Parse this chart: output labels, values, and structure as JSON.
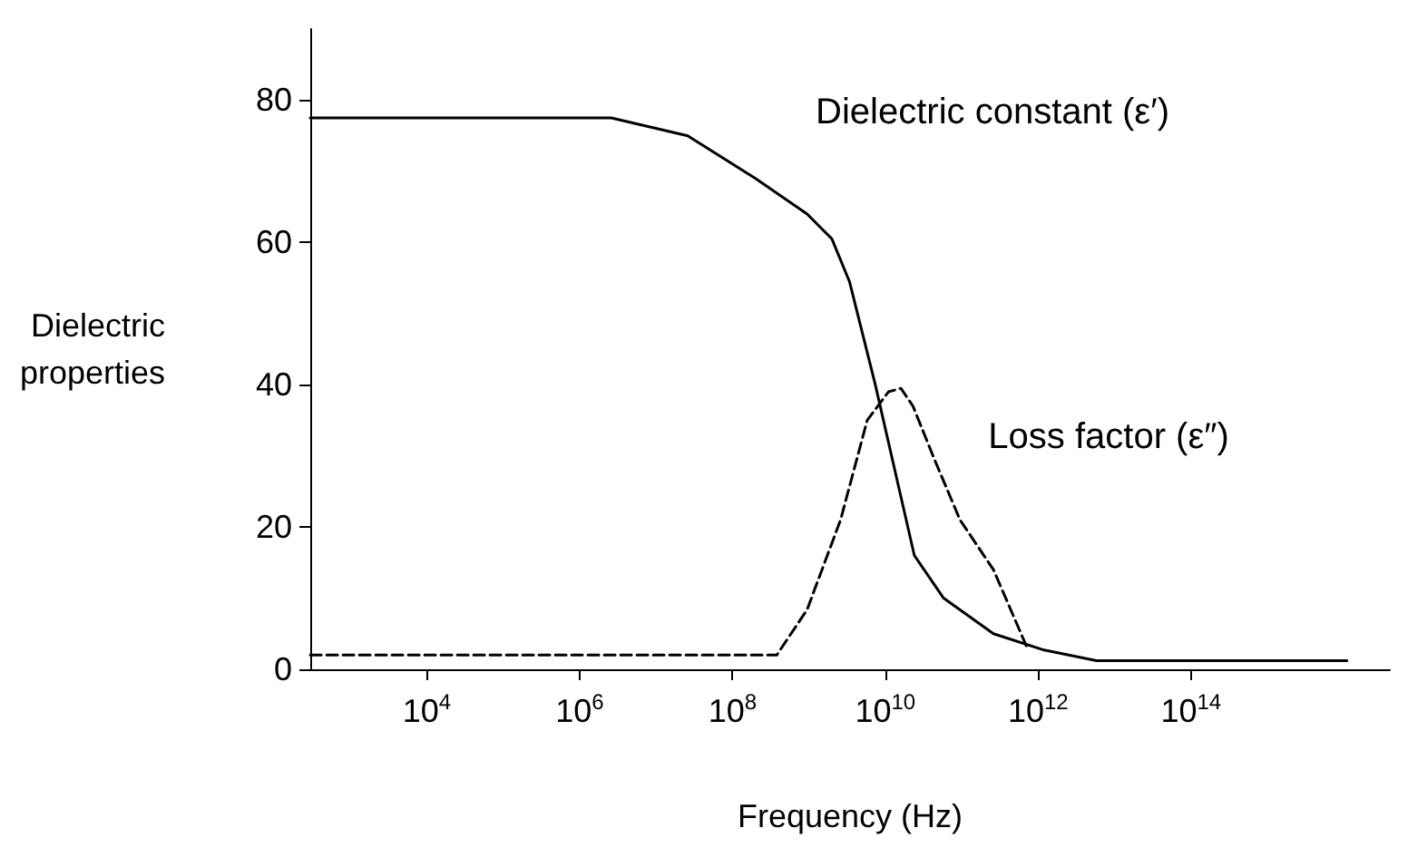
{
  "chart_data": {
    "type": "line",
    "xlabel": "Frequency (Hz)",
    "ylabel": "Dielectric properties",
    "log": "x",
    "xlim": [
      300,
      40000000000000000
    ],
    "ylim": [
      0,
      90
    ],
    "xticks": [
      {
        "value": 10000,
        "label": "10$^{4}$"
      },
      {
        "value": 1000000,
        "label": "10$^{6}$"
      },
      {
        "value": 100000000,
        "label": "10$^{8}$"
      },
      {
        "value": 10000000000,
        "label": "10$^{10}$"
      },
      {
        "value": 1000000000000,
        "label": "10$^{12}$"
      },
      {
        "value": 100000000000000,
        "label": "10$^{14}$"
      }
    ],
    "yticks": [
      0,
      20,
      40,
      60,
      80
    ],
    "grid": false,
    "marker": "none",
    "series": [
      {
        "color": "#000000",
        "line_style": "solid",
        "x": [
          300,
          2600000,
          26000000,
          200000000,
          950000000,
          2000000000,
          3400000000,
          7400000000,
          24000000000,
          58000000000,
          260000000000,
          1200000000000,
          5800000000000,
          11000000000000000
        ],
        "values": [
          77.5,
          77.5,
          75,
          69,
          64,
          60.5,
          54.5,
          40,
          16,
          10,
          5,
          2.7,
          1.2,
          1.2
        ]
      },
      {
        "color": "#000000",
        "line_style": "dashed",
        "x": [
          300,
          380000000,
          950000000,
          2600000000,
          5800000000,
          11000000000,
          16000000000,
          23000000000,
          44000000000,
          95000000000,
          260000000000,
          740000000000
        ],
        "values": [
          2,
          2,
          8.4,
          21,
          35,
          39,
          39.5,
          37,
          29.5,
          21,
          14,
          2.7
        ]
      }
    ],
    "annotations": [
      "Dielectric constant (ε′)",
      "Loss factor (ε″)"
    ]
  }
}
